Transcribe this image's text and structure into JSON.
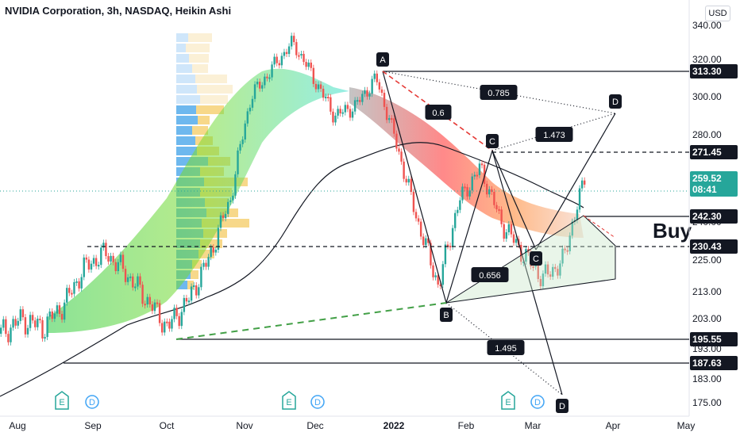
{
  "header": {
    "title": "NVIDIA Corporation, 3h, NASDAQ, Heikin Ashi",
    "currency": "USD"
  },
  "annotations": {
    "buy": "Buy"
  },
  "chart_data": {
    "type": "candlestick",
    "title": "NVIDIA Corporation, 3h, NASDAQ, Heikin Ashi",
    "y_ticks": [
      340,
      320,
      300,
      280,
      240,
      225,
      213,
      203,
      193,
      183,
      175
    ],
    "x_ticks": [
      "Aug",
      "Sep",
      "Oct",
      "Nov",
      "Dec",
      "2022",
      "Feb",
      "Mar",
      "Apr",
      "May"
    ],
    "current_price": {
      "value": "259.52",
      "countdown": "08:41"
    },
    "levels": [
      {
        "value": "313.30",
        "style": "solid"
      },
      {
        "value": "271.45",
        "style": "dashed"
      },
      {
        "value": "242.30",
        "style": "solid"
      },
      {
        "value": "230.43",
        "style": "dashed"
      },
      {
        "value": "195.55",
        "style": "solid"
      },
      {
        "value": "187.63",
        "style": "solid"
      }
    ],
    "pattern_points": [
      "A",
      "B",
      "C",
      "C",
      "D",
      "D"
    ],
    "ratios": [
      "0.785",
      "0.6",
      "1.473",
      "0.656",
      "1.495"
    ],
    "events": [
      "E",
      "D",
      "E",
      "D",
      "E",
      "D"
    ],
    "series": [
      {
        "x": "Jul 28",
        "close": 198
      },
      {
        "x": "Aug 5",
        "close": 203
      },
      {
        "x": "Aug 15",
        "close": 200
      },
      {
        "x": "Aug 23",
        "close": 208
      },
      {
        "x": "Aug 30",
        "close": 222
      },
      {
        "x": "Sep 8",
        "close": 228
      },
      {
        "x": "Sep 20",
        "close": 220
      },
      {
        "x": "Sep 28",
        "close": 210
      },
      {
        "x": "Oct 5",
        "close": 200
      },
      {
        "x": "Oct 12",
        "close": 210
      },
      {
        "x": "Oct 20",
        "close": 226
      },
      {
        "x": "Oct 28",
        "close": 250
      },
      {
        "x": "Nov 5",
        "close": 300
      },
      {
        "x": "Nov 15",
        "close": 315
      },
      {
        "x": "Nov 25",
        "close": 330
      },
      {
        "x": "Dec 3",
        "close": 310
      },
      {
        "x": "Dec 12",
        "close": 290
      },
      {
        "x": "Dec 20",
        "close": 295
      },
      {
        "x": "Dec 30",
        "close": 310
      },
      {
        "x": "Jan 10",
        "close": 275
      },
      {
        "x": "Jan 20",
        "close": 240
      },
      {
        "x": "Jan 27",
        "close": 215
      },
      {
        "x": "Feb 5",
        "close": 250
      },
      {
        "x": "Feb 12",
        "close": 265
      },
      {
        "x": "Feb 20",
        "close": 240
      },
      {
        "x": "Feb 28",
        "close": 228
      },
      {
        "x": "Mar 7",
        "close": 218
      },
      {
        "x": "Mar 14",
        "close": 225
      },
      {
        "x": "Mar 18",
        "close": 259.52
      }
    ]
  }
}
